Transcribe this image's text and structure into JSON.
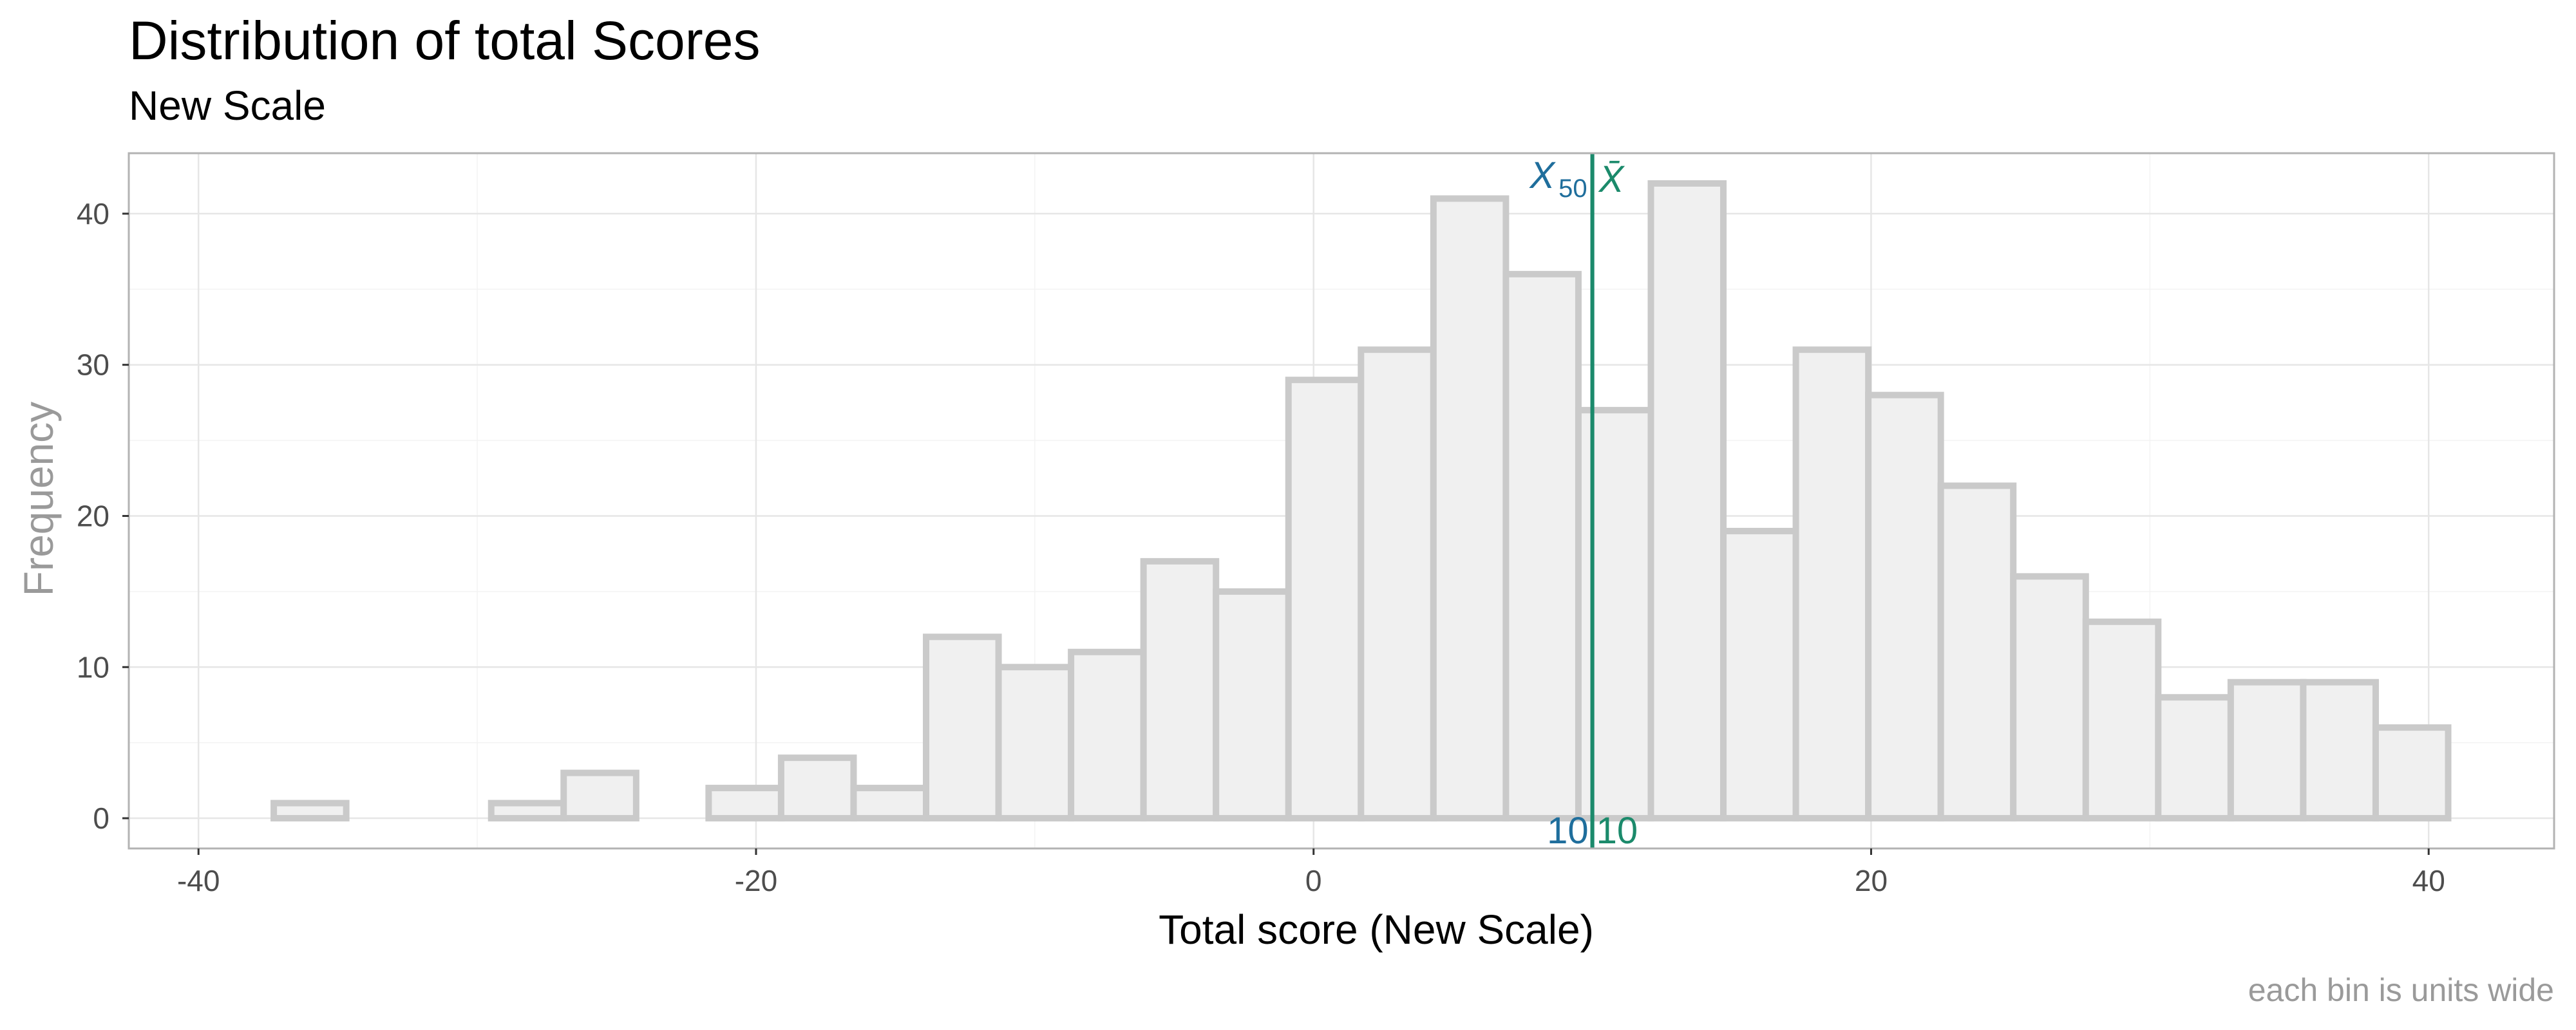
{
  "chart_data": {
    "type": "bar",
    "title": "Distribution of total Scores",
    "subtitle": "New Scale",
    "xlabel": "Total score (New Scale)",
    "ylabel": "Frequency",
    "caption": "each bin is  units wide",
    "xlim": [
      -42.5,
      44.5
    ],
    "ylim": [
      -2,
      44
    ],
    "x_ticks": [
      -40,
      -20,
      0,
      20,
      40
    ],
    "y_ticks": [
      0,
      10,
      20,
      30,
      40
    ],
    "bin_edges": [
      -37.3,
      -34.7,
      -32.1,
      -29.5,
      -26.9,
      -24.3,
      -21.7,
      -19.1,
      -16.5,
      -13.9,
      -11.3,
      -8.7,
      -6.1,
      -3.5,
      -0.9,
      1.7,
      4.3,
      6.9,
      9.5,
      12.1,
      14.7,
      17.3,
      19.9,
      22.5,
      25.1,
      27.7,
      30.3,
      32.9,
      35.5,
      38.1,
      40.7
    ],
    "counts": [
      1,
      0,
      0,
      1,
      3,
      0,
      2,
      4,
      2,
      12,
      10,
      11,
      17,
      15,
      29,
      31,
      41,
      36,
      27,
      42,
      19,
      31,
      28,
      22,
      16,
      13,
      8,
      9,
      9,
      6
    ],
    "grid": true,
    "reference_lines": [
      {
        "name": "median",
        "symbol": "X",
        "subscript": "50",
        "value": 10,
        "value_label": "10",
        "color": "#1f6e9c"
      },
      {
        "name": "mean",
        "symbol": "X̄",
        "subscript": "",
        "value": 10,
        "value_label": "10",
        "color": "#1b8a6b"
      }
    ]
  }
}
